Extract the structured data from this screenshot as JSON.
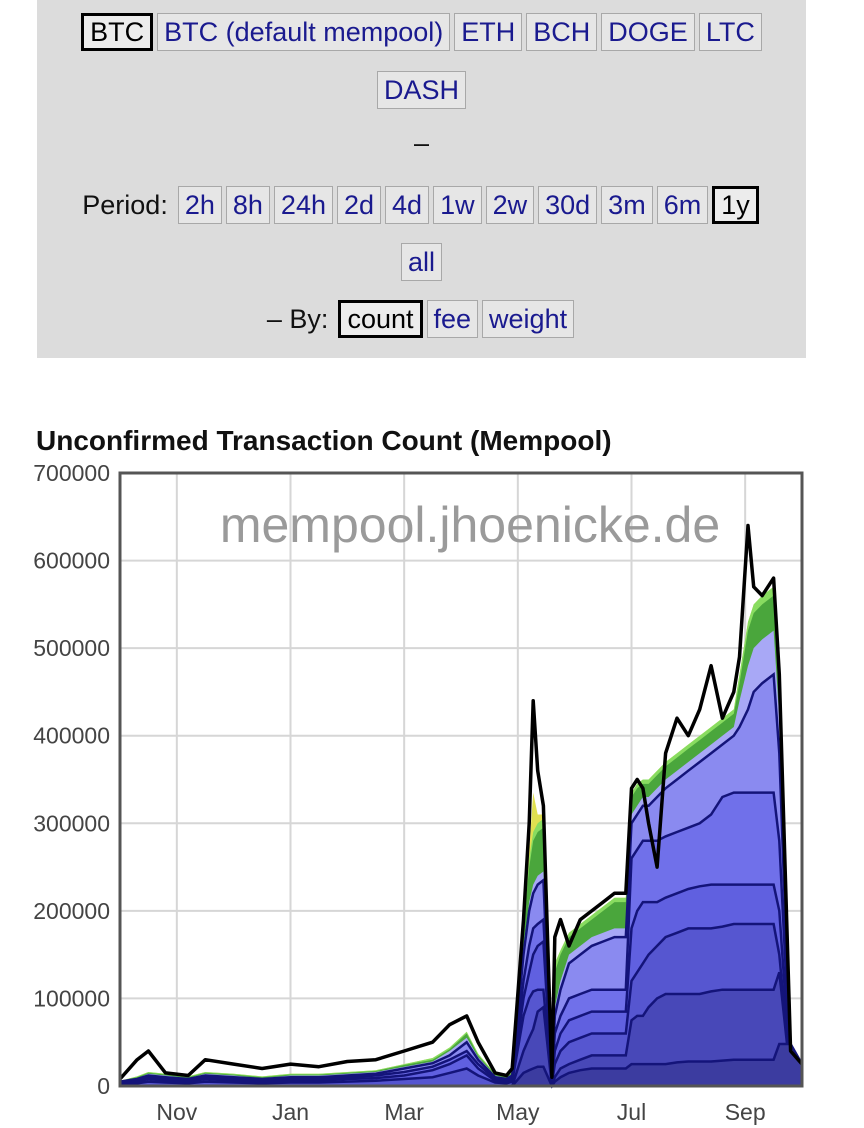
{
  "coins": [
    {
      "label": "BTC",
      "active": true
    },
    {
      "label": "BTC (default mempool)",
      "active": false
    },
    {
      "label": "ETH",
      "active": false
    },
    {
      "label": "BCH",
      "active": false
    },
    {
      "label": "DOGE",
      "active": false
    },
    {
      "label": "LTC",
      "active": false
    },
    {
      "label": "DASH",
      "active": false
    }
  ],
  "separator": "–",
  "period": {
    "label": "Period:",
    "options": [
      {
        "label": "2h",
        "active": false
      },
      {
        "label": "8h",
        "active": false
      },
      {
        "label": "24h",
        "active": false
      },
      {
        "label": "2d",
        "active": false
      },
      {
        "label": "4d",
        "active": false
      },
      {
        "label": "1w",
        "active": false
      },
      {
        "label": "2w",
        "active": false
      },
      {
        "label": "30d",
        "active": false
      },
      {
        "label": "3m",
        "active": false
      },
      {
        "label": "6m",
        "active": false
      },
      {
        "label": "1y",
        "active": true
      },
      {
        "label": "all",
        "active": false
      }
    ]
  },
  "by": {
    "label": "– By:",
    "options": [
      {
        "label": "count",
        "active": true
      },
      {
        "label": "fee",
        "active": false
      },
      {
        "label": "weight",
        "active": false
      }
    ]
  },
  "chart_data": {
    "type": "area",
    "title": "Unconfirmed Transaction Count (Mempool)",
    "watermark": "mempool.jhoenicke.de",
    "xlabel": "",
    "ylabel": "",
    "ylim": [
      0,
      700000
    ],
    "yticks": [
      0,
      100000,
      200000,
      300000,
      400000,
      500000,
      600000,
      700000
    ],
    "xticks": [
      {
        "label": "Nov",
        "pos": 1.0
      },
      {
        "label": "Jan",
        "pos": 3.0
      },
      {
        "label": "Mar",
        "pos": 5.0
      },
      {
        "label": "May",
        "pos": 7.0
      },
      {
        "label": "Jul",
        "pos": 9.0
      },
      {
        "label": "Sep",
        "pos": 11.0
      }
    ],
    "x": [
      0.0,
      0.3,
      0.5,
      0.8,
      1.2,
      1.5,
      2.0,
      2.5,
      3.0,
      3.5,
      4.0,
      4.5,
      5.0,
      5.5,
      5.8,
      6.1,
      6.3,
      6.6,
      6.8,
      6.9,
      7.1,
      7.2,
      7.27,
      7.35,
      7.45,
      7.6,
      7.65,
      7.75,
      7.9,
      8.1,
      8.3,
      8.5,
      8.7,
      8.9,
      9.0,
      9.1,
      9.2,
      9.3,
      9.45,
      9.6,
      9.8,
      10.0,
      10.2,
      10.4,
      10.6,
      10.8,
      10.9,
      11.05,
      11.15,
      11.3,
      11.5,
      11.6,
      11.8,
      12.0
    ],
    "series": [
      {
        "color": "#3c3ca0",
        "values": [
          0,
          0,
          0,
          0,
          0,
          0,
          0,
          0,
          0,
          0,
          0,
          0,
          0,
          0,
          0,
          0,
          0,
          0,
          0,
          0,
          15000,
          18000,
          20000,
          22000,
          22000,
          0,
          5000,
          10000,
          15000,
          18000,
          20000,
          20000,
          20000,
          20000,
          25000,
          25000,
          25000,
          25000,
          25000,
          25000,
          27000,
          28000,
          28000,
          28000,
          29000,
          30000,
          30000,
          30000,
          30000,
          30000,
          30000,
          48000,
          48000,
          25000
        ]
      },
      {
        "color": "#4848b8",
        "values": [
          0,
          0,
          0,
          0,
          0,
          0,
          0,
          0,
          0,
          0,
          0,
          0,
          0,
          0,
          0,
          0,
          0,
          0,
          0,
          0,
          40000,
          55000,
          65000,
          85000,
          90000,
          0,
          10000,
          20000,
          25000,
          30000,
          35000,
          35000,
          35000,
          35000,
          75000,
          80000,
          80000,
          90000,
          100000,
          105000,
          105000,
          105000,
          105000,
          108000,
          110000,
          110000,
          110000,
          110000,
          110000,
          110000,
          110000,
          130000,
          10000,
          5000
        ]
      },
      {
        "color": "#5656d0",
        "values": [
          2000,
          3000,
          5000,
          4000,
          3000,
          5000,
          4000,
          3000,
          4000,
          4000,
          5000,
          6000,
          8000,
          10000,
          15000,
          20000,
          12000,
          4000,
          3000,
          5000,
          80000,
          100000,
          108000,
          110000,
          110000,
          2000,
          25000,
          40000,
          50000,
          55000,
          60000,
          60000,
          60000,
          60000,
          120000,
          130000,
          140000,
          150000,
          160000,
          170000,
          175000,
          180000,
          180000,
          180000,
          182000,
          185000,
          185000,
          185000,
          185000,
          185000,
          185000,
          150000,
          12000,
          6000
        ]
      },
      {
        "color": "#6060e0",
        "values": [
          3000,
          5000,
          8000,
          6000,
          5000,
          8000,
          6000,
          5000,
          6000,
          6000,
          8000,
          9000,
          12000,
          18000,
          25000,
          35000,
          20000,
          6000,
          5000,
          8000,
          100000,
          130000,
          150000,
          160000,
          165000,
          3000,
          40000,
          60000,
          75000,
          80000,
          85000,
          85000,
          85000,
          85000,
          180000,
          200000,
          210000,
          210000,
          210000,
          215000,
          220000,
          225000,
          228000,
          230000,
          230000,
          230000,
          230000,
          230000,
          230000,
          230000,
          230000,
          200000,
          15000,
          8000
        ]
      },
      {
        "color": "#7070ea",
        "values": [
          4000,
          6000,
          10000,
          8000,
          7000,
          10000,
          8000,
          7000,
          8000,
          8000,
          10000,
          12000,
          16000,
          22000,
          30000,
          40000,
          25000,
          8000,
          7000,
          10000,
          120000,
          160000,
          180000,
          185000,
          190000,
          4000,
          60000,
          80000,
          100000,
          105000,
          110000,
          110000,
          110000,
          110000,
          260000,
          270000,
          280000,
          280000,
          280000,
          285000,
          290000,
          295000,
          300000,
          310000,
          330000,
          335000,
          335000,
          335000,
          335000,
          335000,
          335000,
          280000,
          20000,
          10000
        ]
      },
      {
        "color": "#8a8af0",
        "values": [
          5000,
          8000,
          12000,
          10000,
          8000,
          12000,
          10000,
          8000,
          10000,
          10000,
          12000,
          14000,
          20000,
          26000,
          35000,
          50000,
          30000,
          10000,
          8000,
          12000,
          150000,
          200000,
          220000,
          230000,
          235000,
          5000,
          80000,
          110000,
          140000,
          150000,
          160000,
          165000,
          170000,
          170000,
          300000,
          310000,
          320000,
          320000,
          330000,
          340000,
          350000,
          360000,
          370000,
          380000,
          390000,
          400000,
          410000,
          430000,
          450000,
          460000,
          470000,
          380000,
          25000,
          12000
        ]
      },
      {
        "color": "#a8a8f6",
        "values": [
          6000,
          9000,
          14000,
          12000,
          9000,
          14000,
          12000,
          9000,
          12000,
          12000,
          14000,
          16000,
          22000,
          28000,
          40000,
          55000,
          33000,
          12000,
          9000,
          14000,
          160000,
          210000,
          230000,
          240000,
          245000,
          6000,
          90000,
          120000,
          150000,
          160000,
          170000,
          175000,
          180000,
          180000,
          310000,
          320000,
          330000,
          330000,
          340000,
          350000,
          360000,
          370000,
          380000,
          390000,
          400000,
          410000,
          440000,
          480000,
          500000,
          510000,
          520000,
          420000,
          28000,
          14000
        ]
      },
      {
        "color": "#4aa63c",
        "values": [
          6000,
          10000,
          15000,
          13000,
          10000,
          15000,
          13000,
          10000,
          13000,
          13000,
          15000,
          17000,
          24000,
          30000,
          42000,
          60000,
          35000,
          13000,
          10000,
          15000,
          180000,
          250000,
          280000,
          290000,
          295000,
          7000,
          130000,
          150000,
          170000,
          180000,
          190000,
          200000,
          210000,
          210000,
          330000,
          340000,
          345000,
          345000,
          355000,
          365000,
          375000,
          385000,
          395000,
          405000,
          415000,
          425000,
          460000,
          520000,
          540000,
          550000,
          560000,
          450000,
          30000,
          15000
        ]
      },
      {
        "color": "#88dc60",
        "values": [
          6000,
          11000,
          16000,
          14000,
          11000,
          16000,
          14000,
          11000,
          14000,
          14000,
          16000,
          18000,
          25000,
          32000,
          44000,
          62000,
          37000,
          14000,
          11000,
          16000,
          185000,
          260000,
          290000,
          300000,
          305000,
          7000,
          140000,
          155000,
          175000,
          185000,
          195000,
          205000,
          215000,
          215000,
          335000,
          345000,
          350000,
          350000,
          360000,
          370000,
          380000,
          390000,
          400000,
          410000,
          420000,
          430000,
          470000,
          530000,
          550000,
          560000,
          570000,
          460000,
          31000,
          16000
        ]
      },
      {
        "color": "#e0e050",
        "values": [
          6000,
          11000,
          16000,
          14000,
          11000,
          16000,
          14000,
          11000,
          14000,
          14000,
          16000,
          18000,
          25000,
          32000,
          44000,
          62000,
          37000,
          14000,
          11000,
          16000,
          187000,
          268000,
          335000,
          310000,
          310000,
          7000,
          140000,
          155000,
          175000,
          185000,
          195000,
          205000,
          215000,
          215000,
          335000,
          345000,
          350000,
          350000,
          360000,
          370000,
          380000,
          390000,
          400000,
          410000,
          420000,
          430000,
          470000,
          530000,
          550000,
          560000,
          570000,
          460000,
          31000,
          16000
        ]
      }
    ],
    "total": [
      8000,
      30000,
      40000,
      15000,
      12000,
      30000,
      25000,
      20000,
      25000,
      22000,
      28000,
      30000,
      40000,
      50000,
      70000,
      80000,
      50000,
      15000,
      12000,
      20000,
      190000,
      300000,
      440000,
      360000,
      320000,
      10000,
      170000,
      190000,
      160000,
      190000,
      200000,
      210000,
      220000,
      220000,
      340000,
      350000,
      340000,
      300000,
      250000,
      380000,
      420000,
      400000,
      430000,
      480000,
      420000,
      450000,
      490000,
      640000,
      570000,
      560000,
      580000,
      470000,
      40000,
      25000
    ]
  }
}
